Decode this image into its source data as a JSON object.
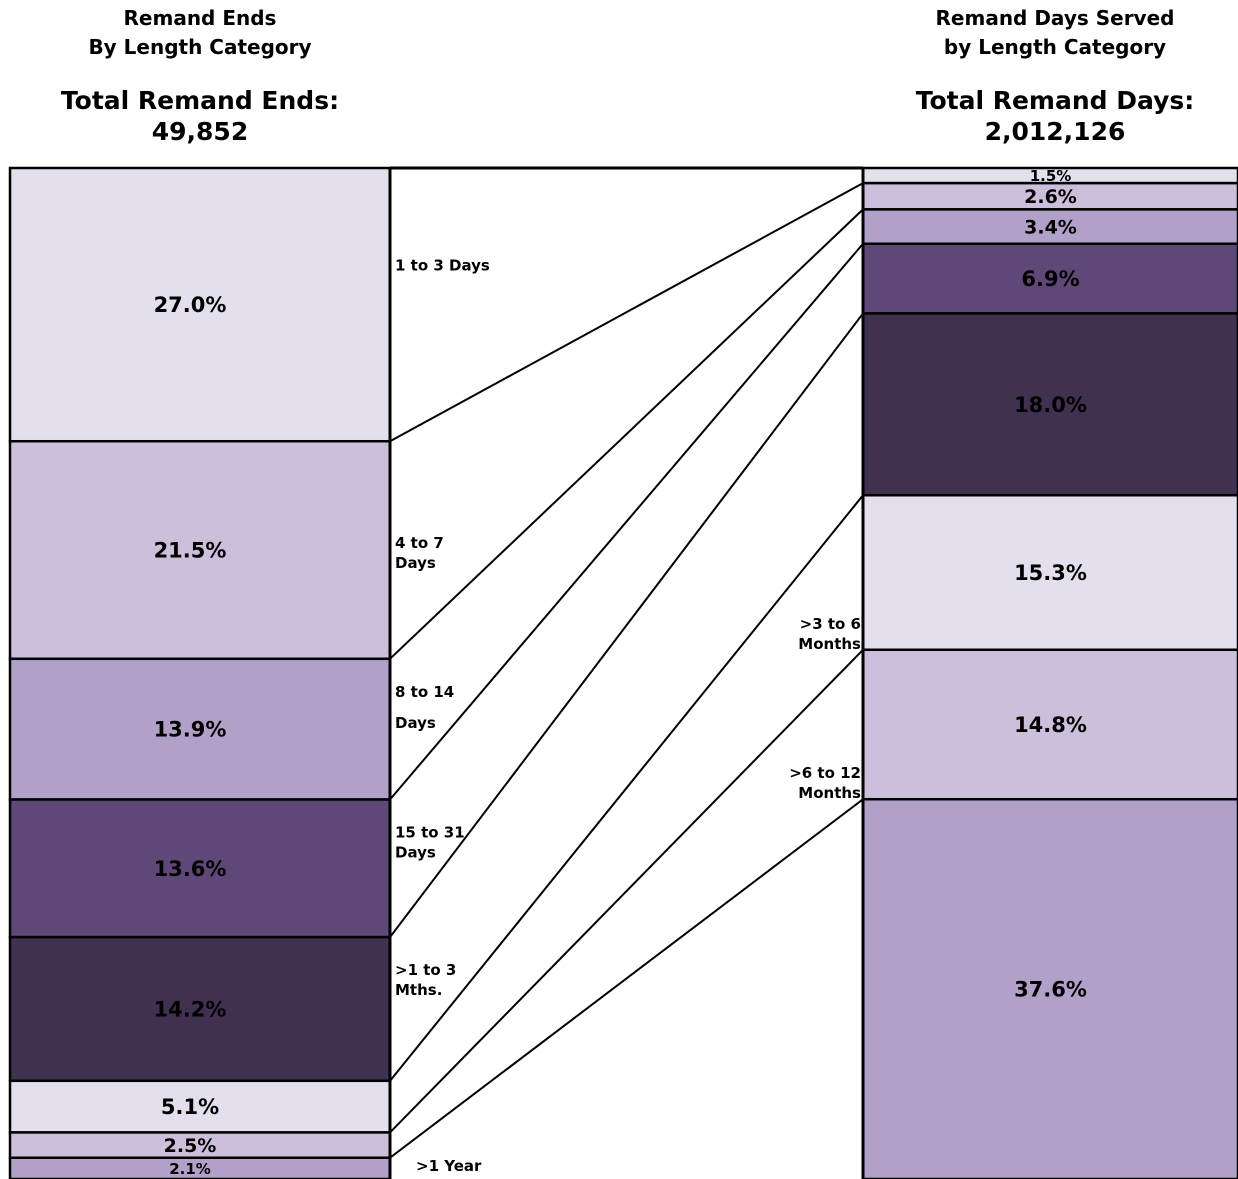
{
  "left_header": {
    "title_line1": "Remand Ends",
    "title_line2": "By Length Category",
    "total_label": "Total Remand Ends:",
    "total_value": "49,852"
  },
  "right_header": {
    "title_line1": "Remand Days Served",
    "title_line2": "by Length Category",
    "total_label": "Total Remand Days:",
    "total_value": "2,012,126"
  },
  "colors": {
    "lightest": "#e3dfec",
    "light": "#ccbfdb",
    "medium": "#b1a1c9",
    "dark": "#5f4878",
    "darkest": "#413150",
    "outline": "#000000"
  },
  "chart_data": {
    "type": "bar",
    "categories": [
      "1 to 3 Days",
      "4 to 7 Days",
      "8 to 14 Days",
      "15 to 31 Days",
      ">1 to 3 Mths.",
      ">3 to 6 Months",
      ">6 to 12 Months",
      ">1 Year"
    ],
    "category_label_lines": [
      [
        "1 to 3 Days"
      ],
      [
        "4 to 7",
        "Days"
      ],
      [
        "8 to 14",
        "Days"
      ],
      [
        "15 to 31",
        "Days"
      ],
      [
        ">1 to 3",
        "Mths."
      ],
      [
        ">3 to 6",
        "Months"
      ],
      [
        ">6 to 12",
        "Months"
      ],
      [
        ">1 Year"
      ]
    ],
    "series": [
      {
        "name": "Remand Ends By Length Category",
        "values": [
          27.0,
          21.5,
          13.9,
          13.6,
          14.2,
          5.1,
          2.5,
          2.1
        ],
        "labels": [
          "27.0%",
          "21.5%",
          "13.9%",
          "13.6%",
          "14.2%",
          "5.1%",
          "2.5%",
          "2.1%"
        ]
      },
      {
        "name": "Remand Days Served by Length Category",
        "values": [
          1.5,
          2.6,
          3.4,
          6.9,
          18.0,
          15.3,
          14.8,
          37.6
        ],
        "labels": [
          "1.5%",
          "2.6%",
          "3.4%",
          "6.9%",
          "18.0%",
          "15.3%",
          "14.8%",
          "37.6%"
        ]
      }
    ],
    "segment_colors": [
      "#e3dfec",
      "#ccbfdb",
      "#b1a1c9",
      "#5f4878",
      "#413150",
      "#e3dfec",
      "#ccbfdb",
      "#b1a1c9"
    ],
    "stacked": true,
    "ylim": [
      0,
      100
    ]
  }
}
